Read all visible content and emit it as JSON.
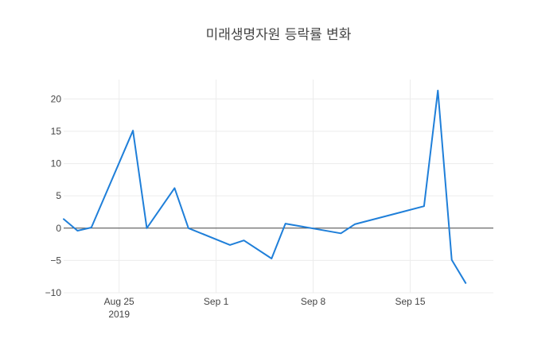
{
  "chart_data": {
    "type": "line",
    "title": "미래생명자원 등락률 변화",
    "xlabel": "",
    "ylabel": "",
    "x_axis": {
      "type": "date",
      "range": [
        "2019-08-21",
        "2019-09-21"
      ],
      "ticks": [
        {
          "date": "2019-08-25",
          "label": "Aug 25",
          "sublabel": "2019"
        },
        {
          "date": "2019-09-01",
          "label": "Sep 1",
          "sublabel": ""
        },
        {
          "date": "2019-09-08",
          "label": "Sep 8",
          "sublabel": ""
        },
        {
          "date": "2019-09-15",
          "label": "Sep 15",
          "sublabel": ""
        }
      ]
    },
    "y_axis": {
      "range": [
        -10,
        23
      ],
      "ticks": [
        {
          "value": 20,
          "label": "20"
        },
        {
          "value": 15,
          "label": "15"
        },
        {
          "value": 10,
          "label": "10"
        },
        {
          "value": 5,
          "label": "5"
        },
        {
          "value": 0,
          "label": "0"
        },
        {
          "value": -5,
          "label": "−5"
        },
        {
          "value": -10,
          "label": "−10"
        }
      ]
    },
    "grid": true,
    "zero_line": true,
    "legend": false,
    "color": "#1f7fd9",
    "series": [
      {
        "x": [
          "2019-08-21",
          "2019-08-22",
          "2019-08-23",
          "2019-08-26",
          "2019-08-27",
          "2019-08-29",
          "2019-08-30",
          "2019-09-02",
          "2019-09-03",
          "2019-09-05",
          "2019-09-06",
          "2019-09-10",
          "2019-09-11",
          "2019-09-16",
          "2019-09-17",
          "2019-09-18",
          "2019-09-19"
        ],
        "y": [
          1.4,
          -0.4,
          0.1,
          15.1,
          0.0,
          6.2,
          0.0,
          -2.6,
          -1.9,
          -4.7,
          0.7,
          -0.8,
          0.6,
          3.4,
          21.3,
          -4.9,
          -8.5
        ]
      }
    ]
  }
}
